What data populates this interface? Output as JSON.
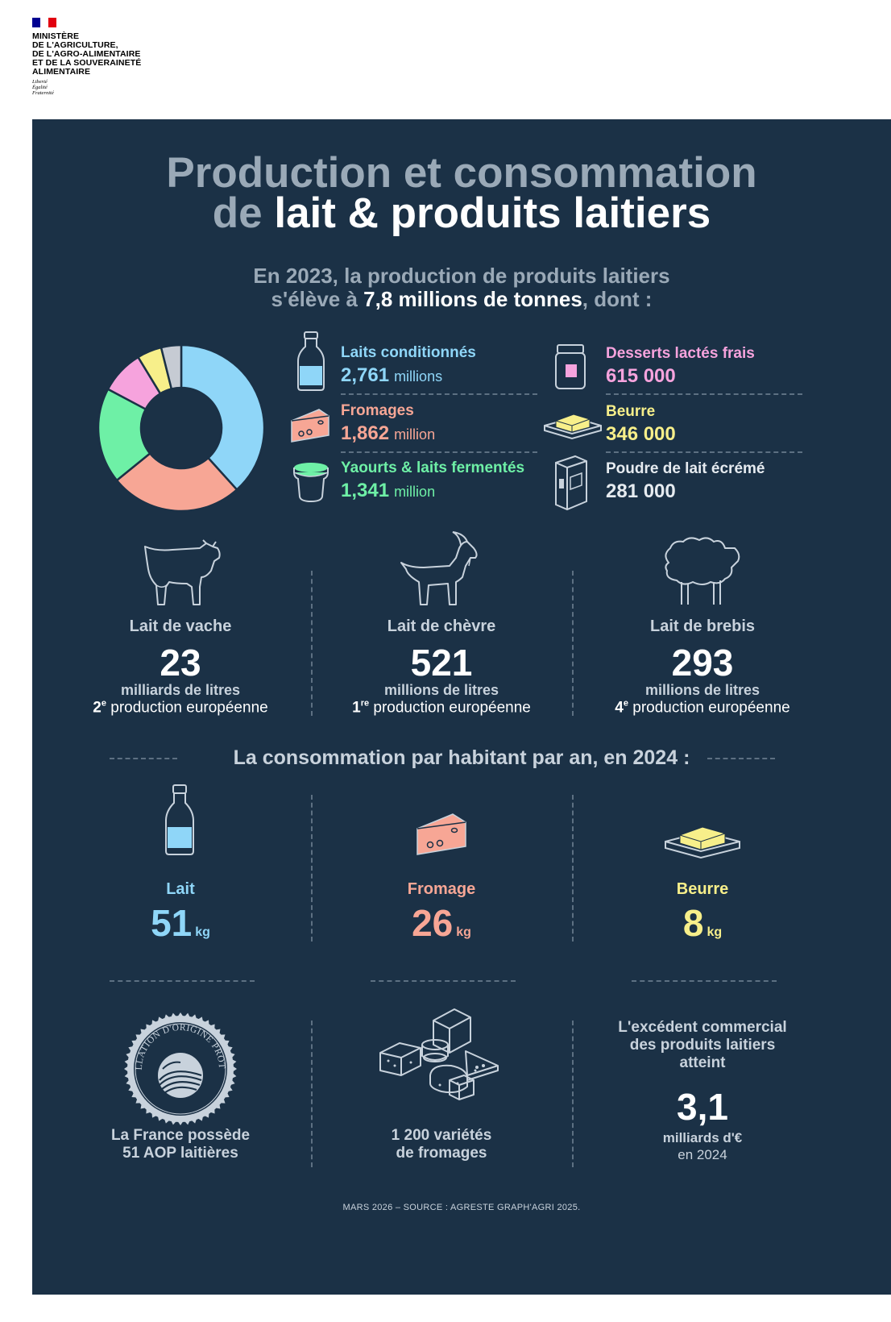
{
  "header": {
    "ministry": "MINISTÈRE\nDE L'AGRICULTURE,\nDE L'AGRO-ALIMENTAIRE\nET DE LA SOUVERAINETÉ\nALIMENTAIRE",
    "motto": "Liberté\nÉgalité\nFraternité"
  },
  "title": {
    "line1": "Production et consommation",
    "line2_pre": "de ",
    "line2_hl": "lait & produits laitiers"
  },
  "subtitle": {
    "line1": "En 2023, la production de produits laitiers",
    "line2_pre": "s'élève à ",
    "line2_hl": "7,8 millions de tonnes",
    "line2_post": ", dont :"
  },
  "chart_data": {
    "type": "pie",
    "categories": [
      "Laits conditionnés",
      "Fromages",
      "Yaourts & laits fermentés",
      "Desserts lactés frais",
      "Beurre",
      "Poudre de lait écrémé"
    ],
    "values": [
      2761000,
      1862000,
      1341000,
      615000,
      346000,
      281000
    ],
    "colors": [
      "#8fd6f8",
      "#f7a695",
      "#6ef0a6",
      "#f6a3dd",
      "#f7ef8a",
      "#c6cbd3"
    ]
  },
  "products": [
    {
      "label": "Laits conditionnés",
      "value": "2,761",
      "unit": "millions",
      "color": "#8fd6f8",
      "icon": "milk-bottle-icon"
    },
    {
      "label": "Fromages",
      "value": "1,862",
      "unit": "million",
      "color": "#f7a695",
      "icon": "cheese-icon"
    },
    {
      "label": "Yaourts & laits fermentés",
      "value": "1,341",
      "unit": "million",
      "color": "#6ef0a6",
      "icon": "yogurt-icon"
    },
    {
      "label": "Desserts lactés frais",
      "value": "615 000",
      "unit": "",
      "color": "#f6a3dd",
      "icon": "dessert-jar-icon"
    },
    {
      "label": "Beurre",
      "value": "346 000",
      "unit": "",
      "color": "#f7ef8a",
      "icon": "butter-icon"
    },
    {
      "label": "Poudre de lait écrémé",
      "value": "281 000",
      "unit": "",
      "color": "#e6ebf0",
      "icon": "milk-powder-box-icon"
    }
  ],
  "animals": [
    {
      "label": "Lait de vache",
      "value": "23",
      "unit": "milliards de litres",
      "rank": "2",
      "rank_sup": "e",
      "rank_text": " production européenne",
      "icon": "cow-icon"
    },
    {
      "label": "Lait de chèvre",
      "value": "521",
      "unit": "millions de litres",
      "rank": "1",
      "rank_sup": "re",
      "rank_text": " production européenne",
      "icon": "goat-icon"
    },
    {
      "label": "Lait de brebis",
      "value": "293",
      "unit": "millions de litres",
      "rank": "4",
      "rank_sup": "e",
      "rank_text": " production européenne",
      "icon": "sheep-icon"
    }
  ],
  "consumption_title": "La consommation par habitant par an, en 2024 :",
  "consumption": [
    {
      "label": "Lait",
      "value": "51",
      "unit": "kg",
      "color": "#8fd6f8",
      "icon": "milk-bottle-icon"
    },
    {
      "label": "Fromage",
      "value": "26",
      "unit": "kg",
      "color": "#f7a695",
      "icon": "cheese-icon"
    },
    {
      "label": "Beurre",
      "value": "8",
      "unit": "kg",
      "color": "#f7ef8a",
      "icon": "butter-icon"
    }
  ],
  "aop": {
    "seal_text": "APPELLATION D'ORIGINE PROTÉGÉE",
    "line1": "La France possède",
    "line2": "51 AOP laitières"
  },
  "varieties": {
    "line1": "1 200 variétés",
    "line2": "de fromages"
  },
  "trade": {
    "line1": "L'excédent commercial",
    "line2": "des produits laitiers",
    "line3": "atteint",
    "value": "3,1",
    "unit": "milliards d'€",
    "year": "en 2024"
  },
  "footer": "MARS 2026 – SOURCE : AGRESTE GRAPH'AGRI 2025."
}
